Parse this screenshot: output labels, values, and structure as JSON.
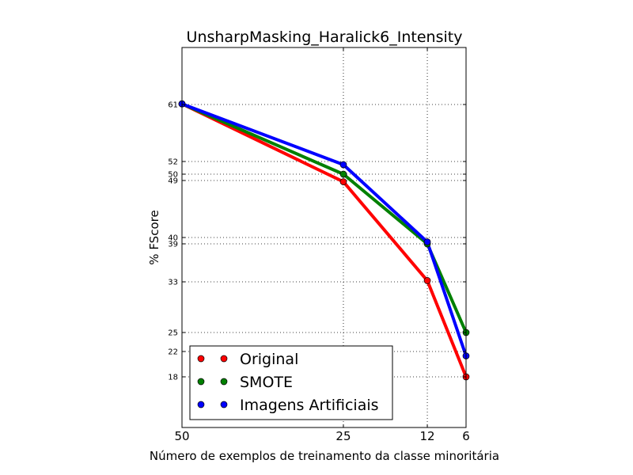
{
  "chart_data": {
    "type": "line",
    "title": "UnsharpMasking_Haralick6_Intensity",
    "xlabel": "Número de exemplos de treinamento da classe minoritária",
    "ylabel": "% FScore",
    "x": [
      50,
      25,
      12,
      6
    ],
    "x_tick_labels": [
      "50",
      "25",
      "12",
      "6"
    ],
    "y_ticks": [
      61,
      52,
      50,
      49,
      40,
      39,
      33,
      25,
      22,
      18
    ],
    "y_tick_labels": [
      "61",
      "52",
      "50",
      "49",
      "40",
      "39",
      "33",
      "25",
      "22",
      "18"
    ],
    "ylim": [
      10,
      70
    ],
    "grid": true,
    "legend_position": "bottom-left",
    "series": [
      {
        "name": "Original",
        "color": "#ff0000",
        "values": [
          61.1,
          48.8,
          33.2,
          18.0
        ]
      },
      {
        "name": "SMOTE",
        "color": "#008000",
        "values": [
          61.1,
          50.0,
          39.0,
          25.0
        ]
      },
      {
        "name": "Imagens Artificiais",
        "color": "#0000ff",
        "values": [
          61.1,
          51.5,
          39.3,
          21.3
        ]
      }
    ]
  }
}
